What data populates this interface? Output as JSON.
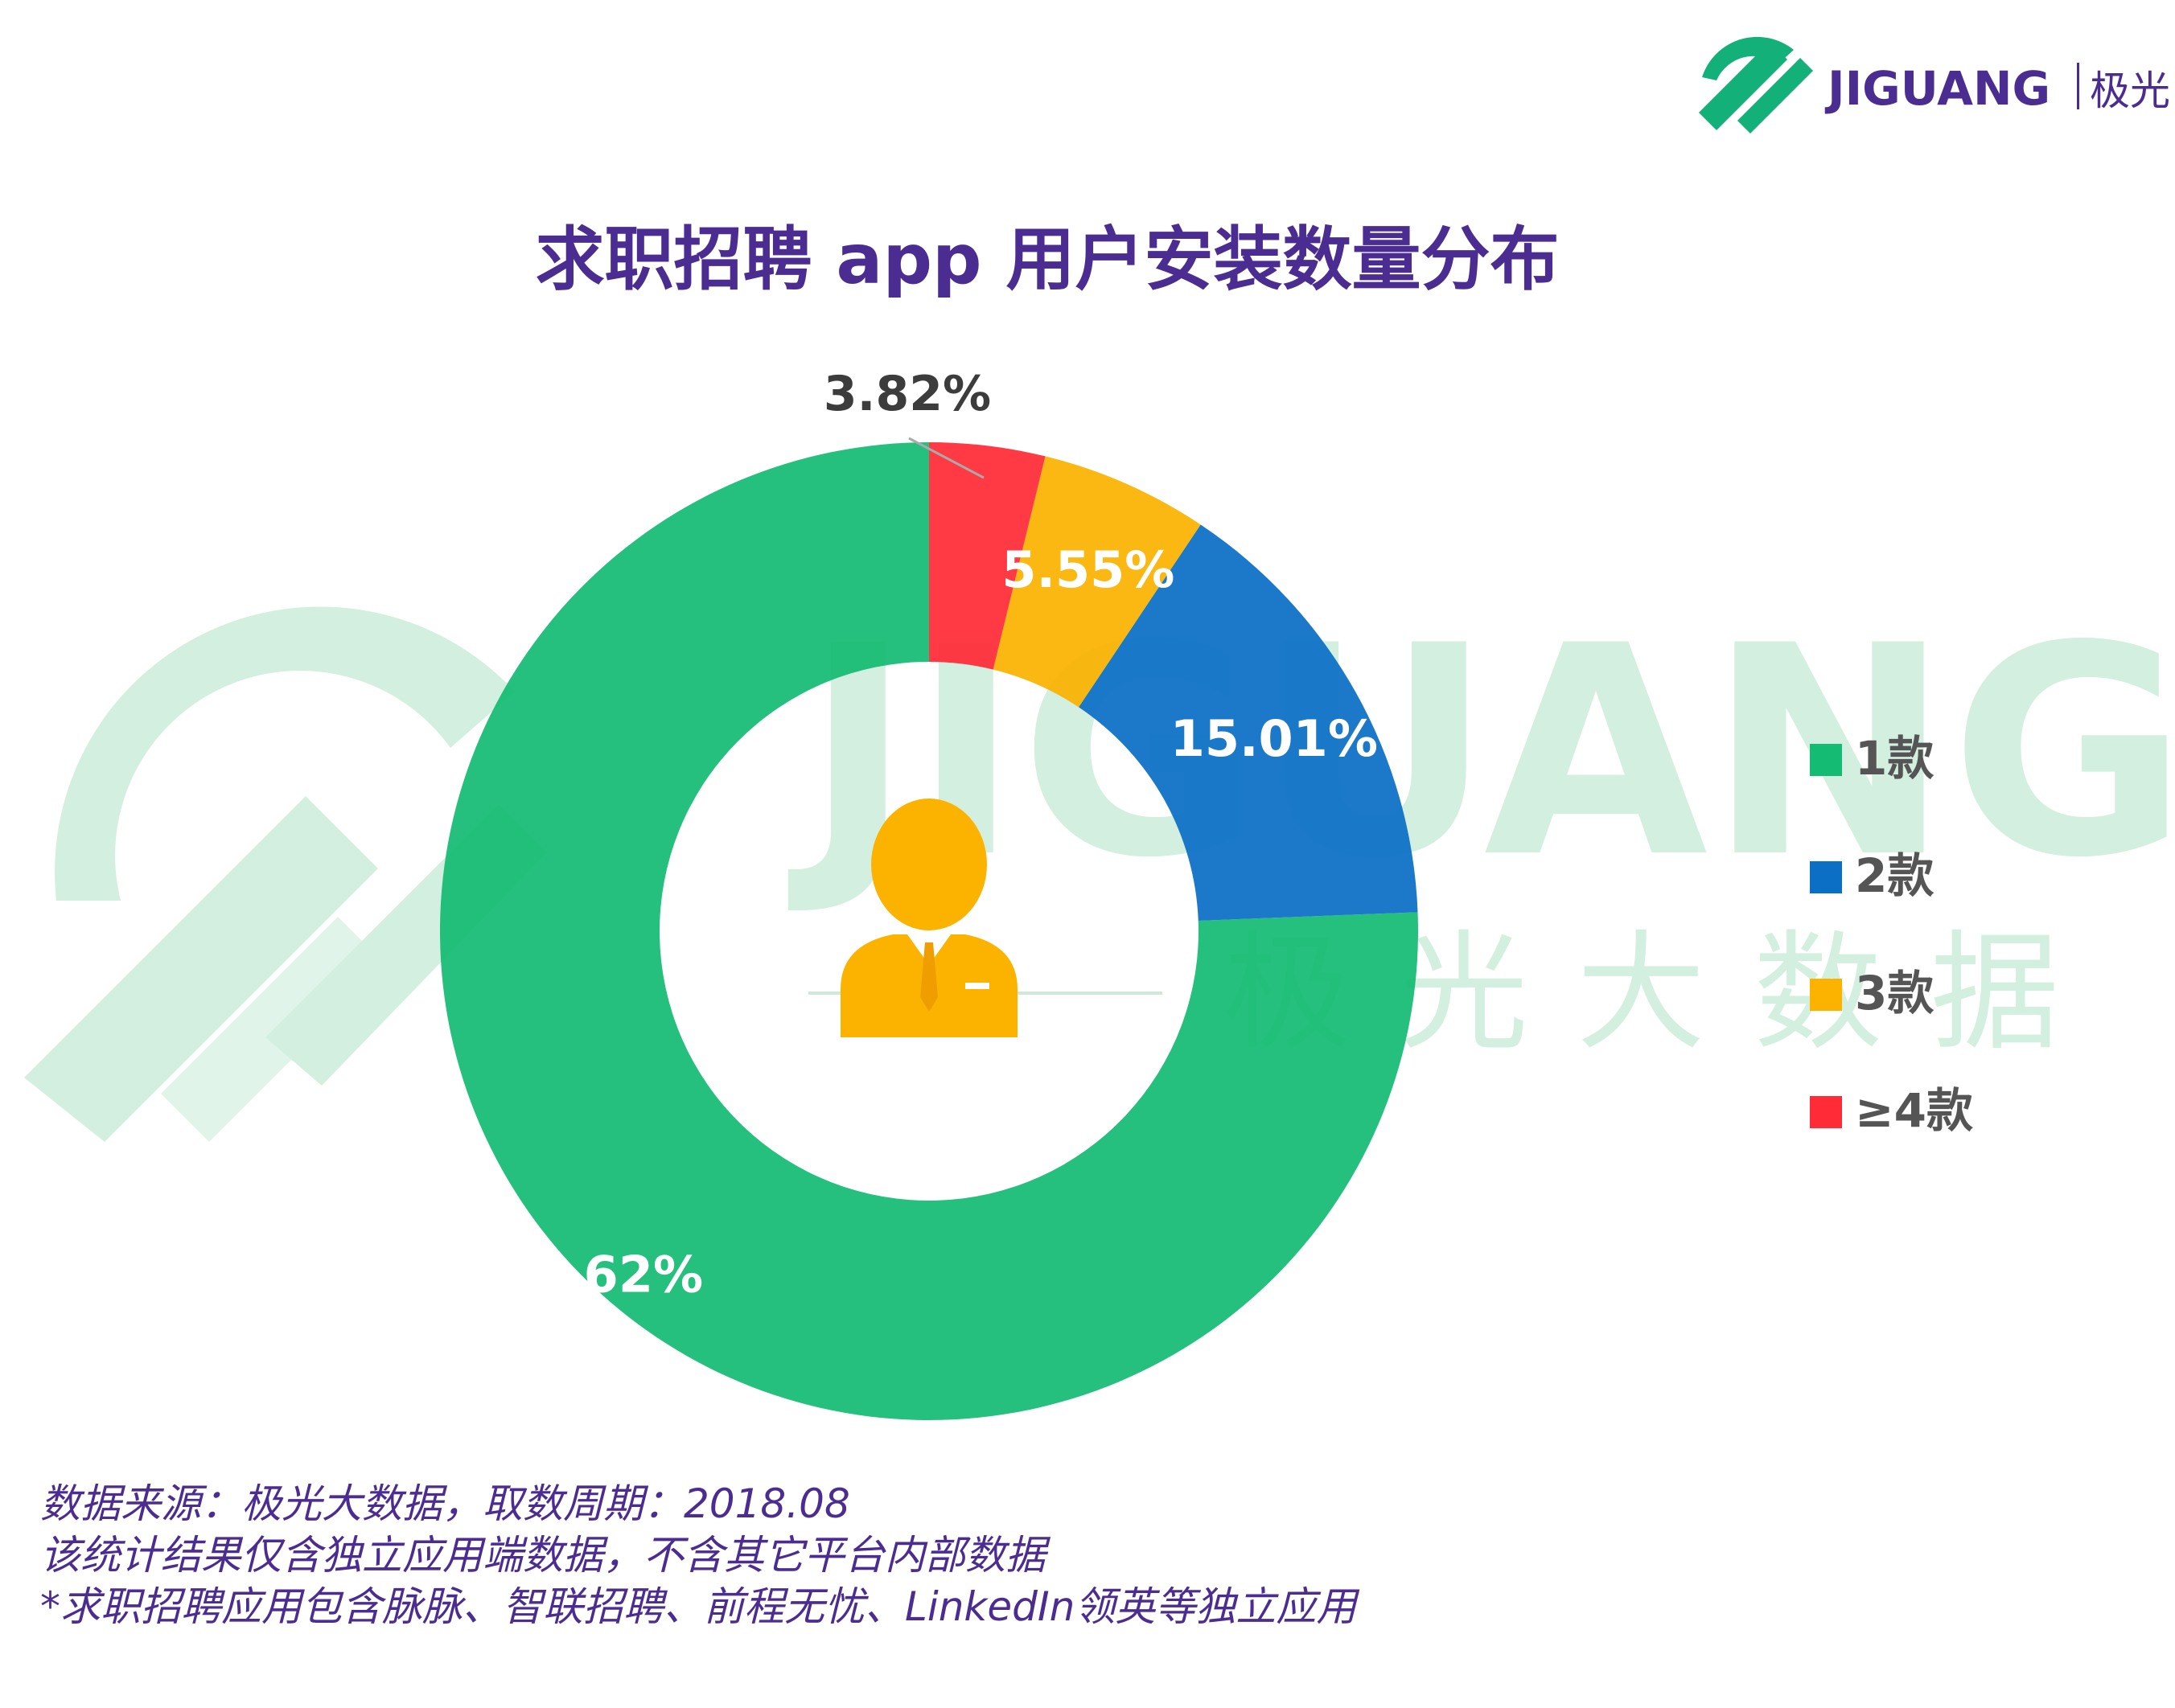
{
  "brand": {
    "logo_text": "JIGUANG",
    "logo_cn": "极光"
  },
  "watermark": {
    "latin": "JIGUANG",
    "cn": "极光大数据"
  },
  "chart_data": {
    "type": "pie",
    "variant": "donut",
    "title": "求职招聘 app 用户安装数量分布",
    "legend_position": "right",
    "categories": [
      "1款",
      "2款",
      "3款",
      "≥4款"
    ],
    "values": [
      75.62,
      15.01,
      5.55,
      3.82
    ],
    "labels": [
      "75.62%",
      "15.01%",
      "5.55%",
      "3.82%"
    ],
    "colors": [
      "#14bb73",
      "#0b6fc6",
      "#fbb300",
      "#ff2b36"
    ],
    "center_icon": "businessman-icon"
  },
  "footnotes": [
    "数据来源：极光大数据，取数周期：2018.08",
    "该统计结果仅含独立应用端数据，不含其它平台内部数据",
    " *求职招聘应用包含脉脉、智联招聘、前程无忧、LinkedIn领英等独立应用"
  ],
  "colors": {
    "title": "#4b2d91",
    "brand_green": "#14b07a",
    "brand_purple": "#4b2d91",
    "watermark": "#d3efe0"
  }
}
